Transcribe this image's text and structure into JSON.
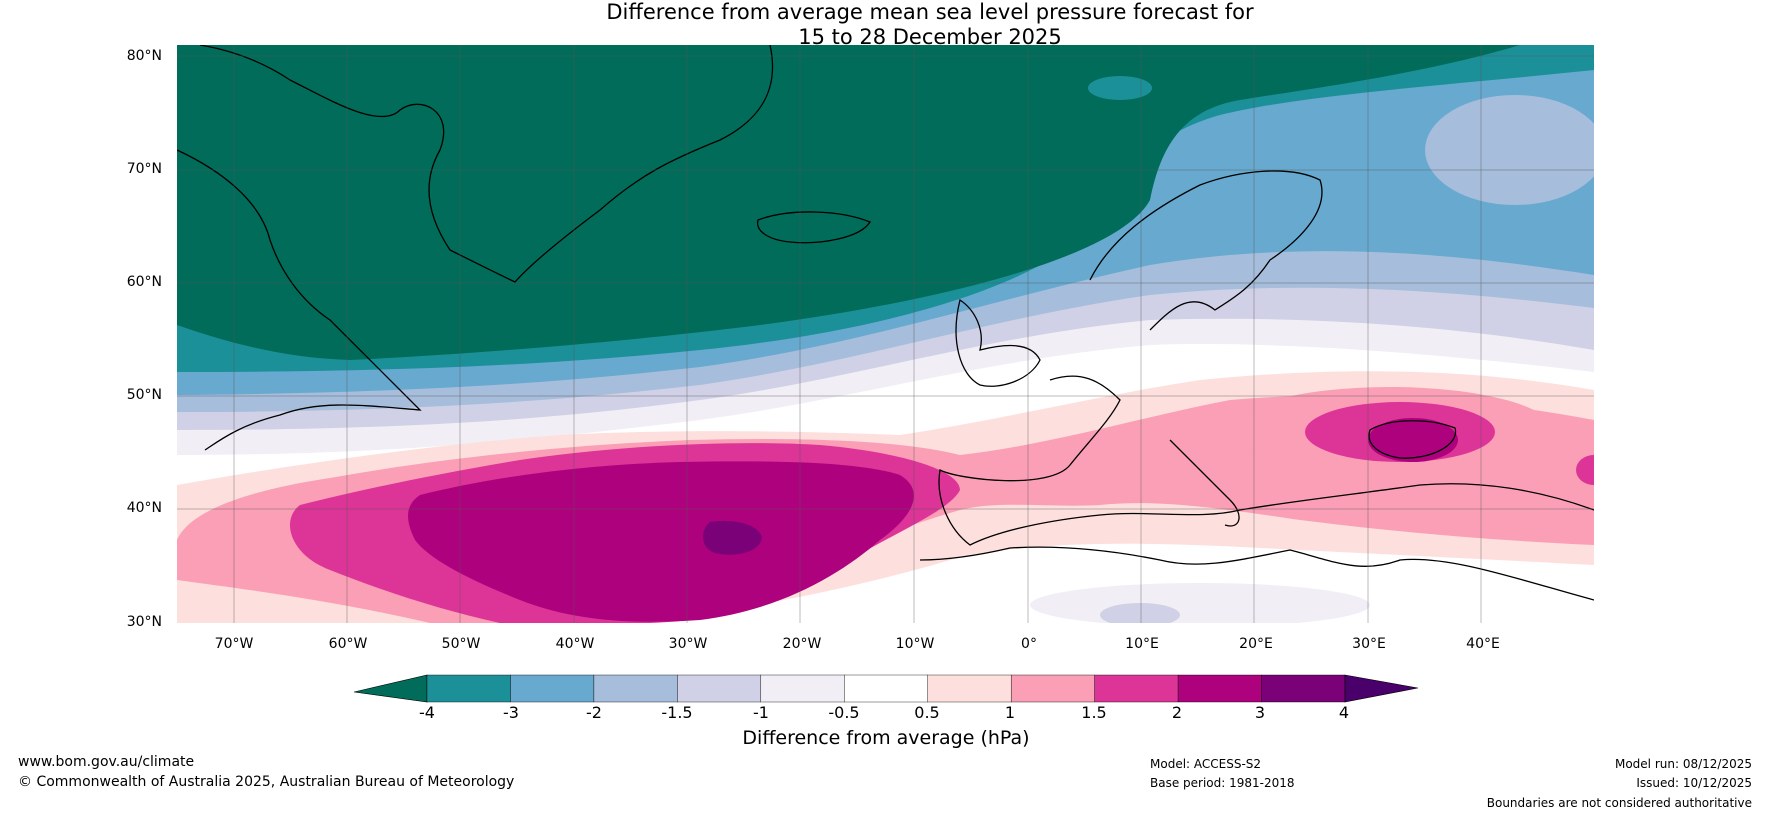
{
  "title": {
    "line1": "Difference from average mean sea level pressure forecast for",
    "line2": "15 to 28 December 2025"
  },
  "map": {
    "projection": "equirectangular",
    "extent": {
      "lon": [
        -75,
        50
      ],
      "lat": [
        30,
        81
      ]
    },
    "lat_labels": [
      "80°N",
      "70°N",
      "60°N",
      "50°N",
      "40°N",
      "30°N"
    ],
    "lon_labels": [
      "70°W",
      "60°W",
      "50°W",
      "40°W",
      "30°W",
      "20°W",
      "10°W",
      "0°",
      "10°E",
      "20°E",
      "30°E",
      "40°E"
    ],
    "regions": [
      {
        "name": "strong-negative-north",
        "class": "-4 and below",
        "color": "#016c59"
      },
      {
        "name": "moderate-positive-atlantic",
        "class": "2 to 3",
        "color": "#ae017e"
      },
      {
        "name": "peak-positive-near-azores",
        "class": "3 to 4",
        "color": "#7a0177"
      },
      {
        "name": "positive-black-sea",
        "class": "1.5 to 2",
        "color": "#dd3497"
      }
    ]
  },
  "colorbar": {
    "ticks": [
      "-4",
      "-3",
      "-2",
      "-1.5",
      "-1",
      "-0.5",
      "0.5",
      "1",
      "1.5",
      "2",
      "3",
      "4"
    ],
    "colors": [
      "#016c59",
      "#1c9099",
      "#67a9cf",
      "#a6bddb",
      "#d0d1e6",
      "#f1eef6",
      "#ffffff",
      "#fde0dd",
      "#fa9fb5",
      "#dd3497",
      "#ae017e",
      "#7a0177"
    ],
    "under_color": "#016c59",
    "over_color": "#49006a",
    "label": "Difference from average (hPa)"
  },
  "footer": {
    "url": "www.bom.gov.au/climate",
    "copyright": "© Commonwealth of Australia 2025, Australian Bureau of Meteorology",
    "model": "Model: ACCESS-S2",
    "base_period": "Base period: 1981-2018",
    "model_run": "Model run: 08/12/2025",
    "issued": "Issued: 10/12/2025",
    "disclaimer": "Boundaries are not considered authoritative"
  }
}
